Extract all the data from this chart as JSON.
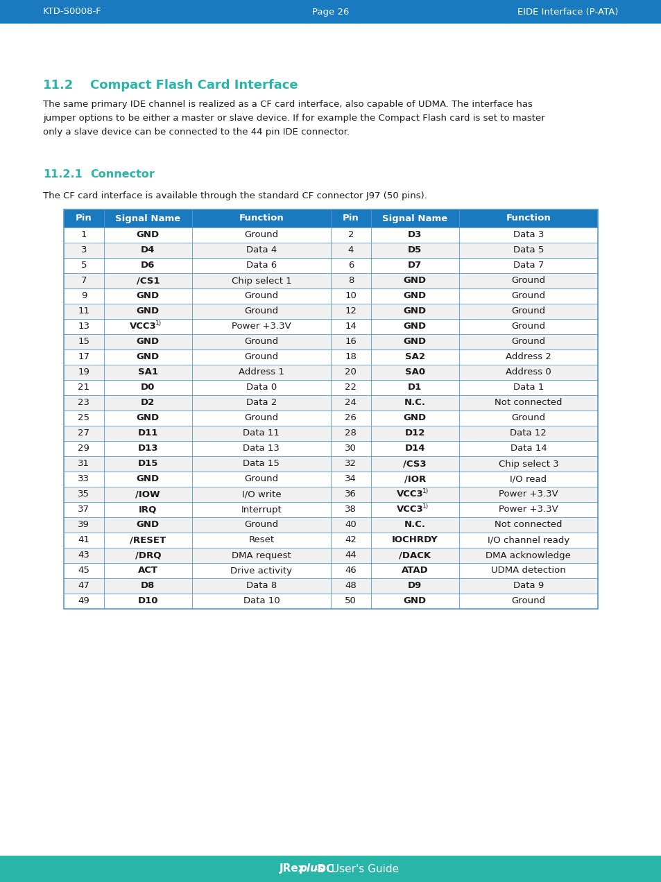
{
  "header_bg": "#1a7abf",
  "header_text_color": "#ffffff",
  "footer_bg": "#2ab5a9",
  "footer_text_color": "#ffffff",
  "page_bg": "#ffffff",
  "teal_color": "#2ab5a9",
  "dark_text": "#1a1a1a",
  "header_left": "KTD-S0008-F",
  "header_center": "Page 26",
  "header_right": "EIDE Interface (P-ATA)",
  "section_title_num": "11.2",
  "section_title_text": "Compact Flash Card Interface",
  "body_lines": [
    "The same primary IDE channel is realized as a CF card interface, also capable of UDMA. The interface has",
    "jumper options to be either a master or slave device. If for example the Compact Flash card is set to master",
    "only a slave device can be connected to the 44 pin IDE connector."
  ],
  "sub_section_num": "11.2.1",
  "sub_section_text": "Connector",
  "sub_body": "The CF card interface is available through the standard CF connector J97 (50 pins).",
  "table_header_bg": "#1a7abf",
  "table_header_text": "#ffffff",
  "table_row_light": "#f0f0f0",
  "table_row_white": "#ffffff",
  "table_border_color": "#5599cc",
  "col_headers": [
    "Pin",
    "Signal Name",
    "Function",
    "Pin",
    "Signal Name",
    "Function"
  ],
  "col_props": [
    0.075,
    0.165,
    0.26,
    0.075,
    0.165,
    0.26
  ],
  "rows": [
    [
      "1",
      "GND",
      "Ground",
      "2",
      "D3",
      "Data 3"
    ],
    [
      "3",
      "D4",
      "Data 4",
      "4",
      "D5",
      "Data 5"
    ],
    [
      "5",
      "D6",
      "Data 6",
      "6",
      "D7",
      "Data 7"
    ],
    [
      "7",
      "/CS1",
      "Chip select 1",
      "8",
      "GND",
      "Ground"
    ],
    [
      "9",
      "GND",
      "Ground",
      "10",
      "GND",
      "Ground"
    ],
    [
      "11",
      "GND",
      "Ground",
      "12",
      "GND",
      "Ground"
    ],
    [
      "13",
      "VCC3 1)",
      "Power +3.3V",
      "14",
      "GND",
      "Ground"
    ],
    [
      "15",
      "GND",
      "Ground",
      "16",
      "GND",
      "Ground"
    ],
    [
      "17",
      "GND",
      "Ground",
      "18",
      "SA2",
      "Address 2"
    ],
    [
      "19",
      "SA1",
      "Address 1",
      "20",
      "SA0",
      "Address 0"
    ],
    [
      "21",
      "D0",
      "Data 0",
      "22",
      "D1",
      "Data 1"
    ],
    [
      "23",
      "D2",
      "Data 2",
      "24",
      "N.C.",
      "Not connected"
    ],
    [
      "25",
      "GND",
      "Ground",
      "26",
      "GND",
      "Ground"
    ],
    [
      "27",
      "D11",
      "Data 11",
      "28",
      "D12",
      "Data 12"
    ],
    [
      "29",
      "D13",
      "Data 13",
      "30",
      "D14",
      "Data 14"
    ],
    [
      "31",
      "D15",
      "Data 15",
      "32",
      "/CS3",
      "Chip select 3"
    ],
    [
      "33",
      "GND",
      "Ground",
      "34",
      "/IOR",
      "I/O read"
    ],
    [
      "35",
      "/IOW",
      "I/O write",
      "36",
      "VCC3 1)",
      "Power +3.3V"
    ],
    [
      "37",
      "IRQ",
      "Interrupt",
      "38",
      "VCC3 1)",
      "Power +3.3V"
    ],
    [
      "39",
      "GND",
      "Ground",
      "40",
      "N.C.",
      "Not connected"
    ],
    [
      "41",
      "/RESET",
      "Reset",
      "42",
      "IOCHRDY",
      "I/O channel ready"
    ],
    [
      "43",
      "/DRQ",
      "DMA request",
      "44",
      "/DACK",
      "DMA acknowledge"
    ],
    [
      "45",
      "ACT",
      "Drive activity",
      "46",
      "ATAD",
      "UDMA detection"
    ],
    [
      "47",
      "D8",
      "Data 8",
      "48",
      "D9",
      "Data 9"
    ],
    [
      "49",
      "D10",
      "Data 10",
      "50",
      "GND",
      "Ground"
    ]
  ]
}
